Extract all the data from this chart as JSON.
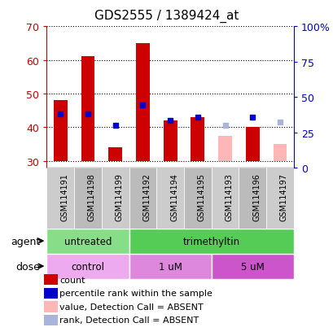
{
  "title": "GDS2555 / 1389424_at",
  "samples": [
    "GSM114191",
    "GSM114198",
    "GSM114199",
    "GSM114192",
    "GSM114194",
    "GSM114195",
    "GSM114193",
    "GSM114196",
    "GSM114197"
  ],
  "bar_bottom": 30,
  "count_values": [
    48,
    61,
    34,
    65,
    42,
    43,
    37.5,
    40,
    35
  ],
  "rank_values": [
    44,
    44,
    40.5,
    46.5,
    42,
    43,
    40.5,
    43,
    41.5
  ],
  "absent_flags": [
    false,
    false,
    false,
    false,
    false,
    false,
    true,
    false,
    true
  ],
  "ylim_left": [
    28,
    70
  ],
  "ylim_right": [
    0,
    100
  ],
  "yticks_left": [
    30,
    40,
    50,
    60,
    70
  ],
  "yticks_right": [
    0,
    25,
    50,
    75,
    100
  ],
  "yticklabels_right": [
    "0",
    "25",
    "50",
    "75",
    "100%"
  ],
  "color_count_present": "#cc0000",
  "color_count_absent": "#ffb6b6",
  "color_rank_present": "#0000cc",
  "color_rank_absent": "#aab4d8",
  "agent_regions": [
    {
      "label": "untreated",
      "start": 0,
      "end": 3,
      "color": "#88dd88"
    },
    {
      "label": "trimethyltin",
      "start": 3,
      "end": 9,
      "color": "#55cc55"
    }
  ],
  "dose_regions": [
    {
      "label": "control",
      "start": 0,
      "end": 3,
      "color": "#eeaaee"
    },
    {
      "label": "1 uM",
      "start": 3,
      "end": 6,
      "color": "#dd88dd"
    },
    {
      "label": "5 uM",
      "start": 6,
      "end": 9,
      "color": "#cc55cc"
    }
  ],
  "legend_items": [
    {
      "color": "#cc0000",
      "label": "count"
    },
    {
      "color": "#0000cc",
      "label": "percentile rank within the sample"
    },
    {
      "color": "#ffb6b6",
      "label": "value, Detection Call = ABSENT"
    },
    {
      "color": "#aab4d8",
      "label": "rank, Detection Call = ABSENT"
    }
  ],
  "bar_width": 0.5,
  "grid_color": "black",
  "grid_linestyle": "dotted",
  "label_bg_color": "#cccccc",
  "label_bg_color_alt": "#bbbbbb"
}
